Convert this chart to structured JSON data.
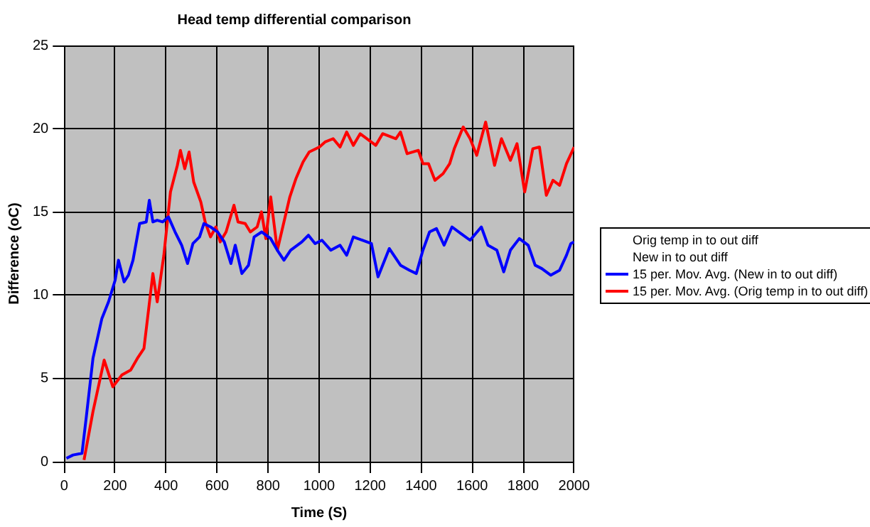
{
  "chart_data": {
    "type": "line",
    "title": "Head temp differential comparison",
    "xlabel": "Time (S)",
    "ylabel": "Difference (oC)",
    "xlim": [
      0,
      2000
    ],
    "xticks": [
      0,
      200,
      400,
      600,
      800,
      1000,
      1200,
      1400,
      1600,
      1800,
      2000
    ],
    "ylim": [
      0,
      25
    ],
    "yticks": [
      0,
      5,
      10,
      15,
      20,
      25
    ],
    "grid": true,
    "legend": "right",
    "marker": "none",
    "line_style": "solid",
    "series": [
      {
        "name": "Orig temp in to out diff"
      },
      {
        "name": "New in to out diff"
      },
      {
        "name": "15 per. Mov. Avg. (New in to out diff)",
        "color": "#0000ff",
        "x": [
          9,
          35,
          70,
          87,
          113,
          148,
          174,
          200,
          213,
          235,
          252,
          270,
          296,
          322,
          334,
          348,
          365,
          386,
          409,
          435,
          461,
          484,
          505,
          531,
          548,
          574,
          602,
          628,
          654,
          671,
          697,
          723,
          745,
          775,
          810,
          836,
          862,
          888,
          932,
          958,
          984,
          1011,
          1046,
          1082,
          1108,
          1134,
          1169,
          1205,
          1231,
          1275,
          1319,
          1354,
          1381,
          1407,
          1433,
          1460,
          1490,
          1521,
          1556,
          1592,
          1636,
          1662,
          1697,
          1724,
          1750,
          1785,
          1820,
          1847,
          1873,
          1908,
          1943,
          1970,
          1987,
          2000
        ],
        "values": [
          0.2,
          0.4,
          0.5,
          2.7,
          6.2,
          8.6,
          9.6,
          10.9,
          12.1,
          10.8,
          11.2,
          12.1,
          14.3,
          14.4,
          15.7,
          14.4,
          14.5,
          14.4,
          14.7,
          13.8,
          13.0,
          11.9,
          13.1,
          13.5,
          14.3,
          14.1,
          13.8,
          13.2,
          11.9,
          13.0,
          11.3,
          11.8,
          13.5,
          13.8,
          13.4,
          12.7,
          12.1,
          12.7,
          13.2,
          13.6,
          13.1,
          13.3,
          12.7,
          13.0,
          12.4,
          13.5,
          13.3,
          13.1,
          11.1,
          12.8,
          11.8,
          11.5,
          11.3,
          12.7,
          13.8,
          14.0,
          13.0,
          14.1,
          13.7,
          13.3,
          14.1,
          13.0,
          12.7,
          11.4,
          12.7,
          13.4,
          13.0,
          11.8,
          11.6,
          11.2,
          11.5,
          12.4,
          13.1,
          13.2
        ]
      },
      {
        "name": "15 per. Mov. Avg. (Orig temp in to out diff)",
        "color": "#ff0000",
        "x": [
          78,
          113,
          157,
          191,
          226,
          261,
          287,
          313,
          348,
          365,
          391,
          417,
          444,
          456,
          473,
          490,
          508,
          536,
          553,
          574,
          595,
          612,
          635,
          666,
          682,
          710,
          730,
          757,
          774,
          791,
          810,
          836,
          862,
          885,
          909,
          937,
          961,
          1001,
          1023,
          1055,
          1082,
          1108,
          1134,
          1161,
          1222,
          1249,
          1301,
          1319,
          1345,
          1389,
          1407,
          1429,
          1454,
          1486,
          1512,
          1530,
          1565,
          1592,
          1618,
          1653,
          1688,
          1715,
          1750,
          1776,
          1806,
          1838,
          1864,
          1891,
          1917,
          1943,
          1970,
          2000
        ],
        "values": [
          0.1,
          3.0,
          6.1,
          4.5,
          5.2,
          5.5,
          6.2,
          6.8,
          11.3,
          9.6,
          12.4,
          16.2,
          17.8,
          18.7,
          17.6,
          18.6,
          16.8,
          15.6,
          14.4,
          13.5,
          14.1,
          13.2,
          13.8,
          15.4,
          14.4,
          14.3,
          13.8,
          14.1,
          15.0,
          13.4,
          15.9,
          12.7,
          14.4,
          15.9,
          17.0,
          18.0,
          18.6,
          18.9,
          19.2,
          19.4,
          18.9,
          19.8,
          19.0,
          19.7,
          19.0,
          19.7,
          19.4,
          19.8,
          18.5,
          18.7,
          17.9,
          17.9,
          16.9,
          17.3,
          17.9,
          18.8,
          20.1,
          19.4,
          18.4,
          20.4,
          17.8,
          19.4,
          18.1,
          19.1,
          16.2,
          18.8,
          18.9,
          16.0,
          16.9,
          16.6,
          17.9,
          18.9
        ]
      }
    ]
  }
}
